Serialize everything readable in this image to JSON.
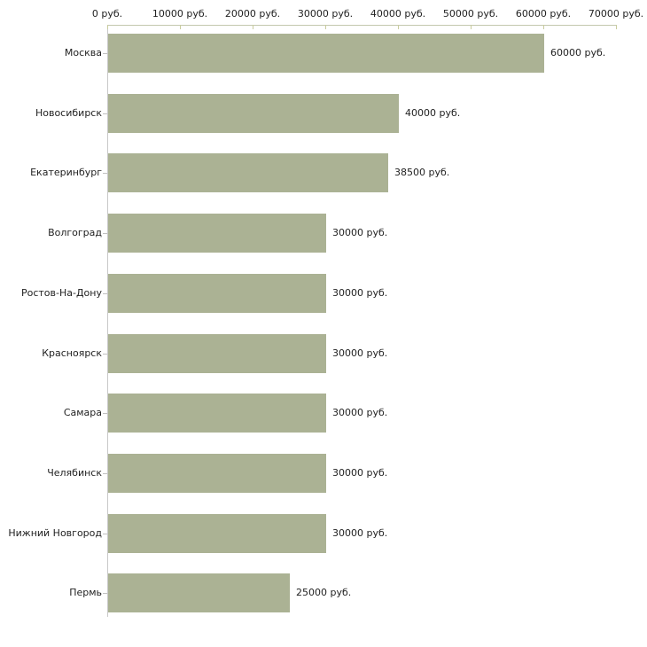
{
  "chart_data": {
    "type": "bar",
    "orientation": "horizontal",
    "title": "",
    "xlabel": "",
    "ylabel": "",
    "unit": "руб.",
    "categories": [
      "Москва",
      "Новосибирск",
      "Екатеринбург",
      "Волгоград",
      "Ростов-На-Дону",
      "Красноярск",
      "Самара",
      "Челябинск",
      "Нижний Новгород",
      "Пермь"
    ],
    "values": [
      60000,
      40000,
      38500,
      30000,
      30000,
      30000,
      30000,
      30000,
      30000,
      25000
    ],
    "value_labels": [
      "60000 руб.",
      "40000 руб.",
      "38500 руб.",
      "30000 руб.",
      "30000 руб.",
      "30000 руб.",
      "30000 руб.",
      "30000 руб.",
      "30000 руб.",
      "25000 руб."
    ],
    "x_axis": {
      "position": "top",
      "min": 0,
      "max": 70000,
      "tick_interval": 10000,
      "tick_labels": [
        "0 руб.",
        "10000 руб.",
        "20000 руб.",
        "30000 руб.",
        "40000 руб.",
        "50000 руб.",
        "60000 руб.",
        "70000 руб."
      ]
    },
    "grid": false,
    "legend": false,
    "colors": {
      "bar": "#abb294",
      "x_axis_line": "#c3c7ad",
      "x_tick": "#c9cc9f",
      "y_axis_line": "#c9c9c9",
      "y_tick": "#c0c0c0",
      "text": "#1f1f1f",
      "background": "#ffffff"
    }
  }
}
